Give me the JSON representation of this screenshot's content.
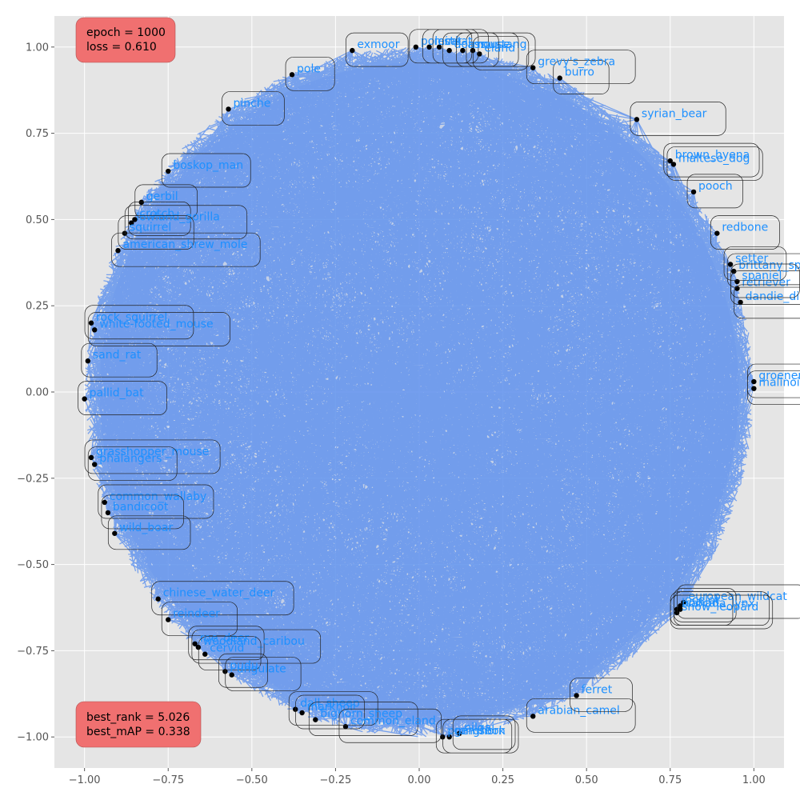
{
  "chart_data": {
    "type": "scatter",
    "title": "",
    "xlabel": "",
    "ylabel": "",
    "xlim": [
      -1.09,
      1.09
    ],
    "ylim": [
      -1.09,
      1.09
    ],
    "grid": true,
    "x_ticks": [
      {
        "value": -1.0,
        "label": "−1.00"
      },
      {
        "value": -0.75,
        "label": "−0.75"
      },
      {
        "value": -0.5,
        "label": "−0.50"
      },
      {
        "value": -0.25,
        "label": "−0.25"
      },
      {
        "value": 0.0,
        "label": "0.00"
      },
      {
        "value": 0.25,
        "label": "0.25"
      },
      {
        "value": 0.5,
        "label": "0.50"
      },
      {
        "value": 0.75,
        "label": "0.75"
      },
      {
        "value": 1.0,
        "label": "1.00"
      }
    ],
    "y_ticks": [
      {
        "value": 1.0,
        "label": "1.00"
      },
      {
        "value": 0.75,
        "label": "0.75"
      },
      {
        "value": 0.5,
        "label": "0.50"
      },
      {
        "value": 0.25,
        "label": "0.25"
      },
      {
        "value": 0.0,
        "label": "0.00"
      },
      {
        "value": -0.25,
        "label": "−0.25"
      },
      {
        "value": -0.5,
        "label": "−0.50"
      },
      {
        "value": -0.75,
        "label": "−0.75"
      },
      {
        "value": -1.0,
        "label": "−1.00"
      }
    ],
    "points": [
      {
        "label": "exmoor",
        "x": -0.2,
        "y": 0.99
      },
      {
        "label": "pole",
        "x": -0.38,
        "y": 0.92
      },
      {
        "label": "pinche",
        "x": -0.57,
        "y": 0.82
      },
      {
        "label": "boskop_man",
        "x": -0.75,
        "y": 0.64
      },
      {
        "label": "gerbil",
        "x": -0.83,
        "y": 0.55
      },
      {
        "label": "crotch",
        "x": -0.85,
        "y": 0.5
      },
      {
        "label": "lowland_gorilla",
        "x": -0.86,
        "y": 0.49
      },
      {
        "label": "squirrel",
        "x": -0.88,
        "y": 0.46
      },
      {
        "label": "american_shrew_mole",
        "x": -0.9,
        "y": 0.41
      },
      {
        "label": "rock_squirrel",
        "x": -0.98,
        "y": 0.2
      },
      {
        "label": "white-footed_mouse",
        "x": -0.97,
        "y": 0.18
      },
      {
        "label": "sand_rat",
        "x": -0.99,
        "y": 0.09
      },
      {
        "label": "pallid_bat",
        "x": -1.0,
        "y": -0.02
      },
      {
        "label": "grasshopper_mouse",
        "x": -0.98,
        "y": -0.19
      },
      {
        "label": "phalangers",
        "x": -0.97,
        "y": -0.21
      },
      {
        "label": "common_wallaby",
        "x": -0.94,
        "y": -0.32
      },
      {
        "label": "bandicoot",
        "x": -0.93,
        "y": -0.35
      },
      {
        "label": "wild_boar",
        "x": -0.91,
        "y": -0.41
      },
      {
        "label": "chinese_water_deer",
        "x": -0.78,
        "y": -0.6
      },
      {
        "label": "reindeer",
        "x": -0.75,
        "y": -0.66
      },
      {
        "label": "roe_deer",
        "x": -0.67,
        "y": -0.73
      },
      {
        "label": "woodland_caribou",
        "x": -0.66,
        "y": -0.74
      },
      {
        "label": "cervid",
        "x": -0.64,
        "y": -0.76
      },
      {
        "label": "pudu",
        "x": -0.58,
        "y": -0.81
      },
      {
        "label": "ungulate",
        "x": -0.56,
        "y": -0.82
      },
      {
        "label": "dall_sheep",
        "x": -0.37,
        "y": -0.92
      },
      {
        "label": "markhor",
        "x": -0.35,
        "y": -0.93
      },
      {
        "label": "bighorn_sheep",
        "x": -0.31,
        "y": -0.95
      },
      {
        "label": "common_eland",
        "x": -0.22,
        "y": -0.97
      },
      {
        "label": "pronghorn",
        "x": 0.07,
        "y": -1.0
      },
      {
        "label": "gemsbok",
        "x": 0.09,
        "y": -1.0
      },
      {
        "label": "nilgai",
        "x": 0.12,
        "y": -0.99
      },
      {
        "label": "arabian_camel",
        "x": 0.34,
        "y": -0.94
      },
      {
        "label": "ferret",
        "x": 0.47,
        "y": -0.88
      },
      {
        "label": "european_wildcat",
        "x": 0.79,
        "y": -0.61
      },
      {
        "label": "ocelot",
        "x": 0.78,
        "y": -0.62
      },
      {
        "label": "canada_lynx",
        "x": 0.78,
        "y": -0.63
      },
      {
        "label": "bobcat",
        "x": 0.77,
        "y": -0.63
      },
      {
        "label": "snow_leopard",
        "x": 0.77,
        "y": -0.64
      },
      {
        "label": "groenendael",
        "x": 1.0,
        "y": 0.03
      },
      {
        "label": "malinois",
        "x": 1.0,
        "y": 0.01
      },
      {
        "label": "retriever",
        "x": 0.95,
        "y": 0.3
      },
      {
        "label": "dandie_dinmont",
        "x": 0.96,
        "y": 0.26
      },
      {
        "label": "setter",
        "x": 0.93,
        "y": 0.37
      },
      {
        "label": "brittany_spaniel",
        "x": 0.94,
        "y": 0.35
      },
      {
        "label": "spaniel",
        "x": 0.95,
        "y": 0.32
      },
      {
        "label": "redbone",
        "x": 0.89,
        "y": 0.46
      },
      {
        "label": "pooch",
        "x": 0.82,
        "y": 0.58
      },
      {
        "label": "brown_hyena",
        "x": 0.75,
        "y": 0.67
      },
      {
        "label": "maltese_dog",
        "x": 0.76,
        "y": 0.66
      },
      {
        "label": "syrian_bear",
        "x": 0.65,
        "y": 0.79
      },
      {
        "label": "burro",
        "x": 0.42,
        "y": 0.91
      },
      {
        "label": "grevy's_zebra",
        "x": 0.34,
        "y": 0.94
      },
      {
        "label": "mustang",
        "x": 0.16,
        "y": 0.99
      },
      {
        "label": "polecat",
        "x": -0.01,
        "y": 1.0
      },
      {
        "label": "mink",
        "x": 0.03,
        "y": 1.0
      },
      {
        "label": "stoat",
        "x": 0.06,
        "y": 1.0
      },
      {
        "label": "dormouse",
        "x": 0.09,
        "y": 0.99
      },
      {
        "label": "ass",
        "x": 0.13,
        "y": 0.99
      },
      {
        "label": "eland",
        "x": 0.18,
        "y": 0.98
      }
    ],
    "annotations": [
      {
        "position": "top-left",
        "lines": [
          "epoch = 1000",
          "loss = 0.610"
        ]
      },
      {
        "position": "bottom-left",
        "lines": [
          "best_rank = 5.026",
          "best_mAP = 0.338"
        ]
      }
    ],
    "colors": {
      "background": "#e5e5e5",
      "grid": "#ffffff",
      "edge": "#6495ed",
      "point": "#000000",
      "label": "#1e90ff",
      "stat_box": "#f07070"
    }
  }
}
